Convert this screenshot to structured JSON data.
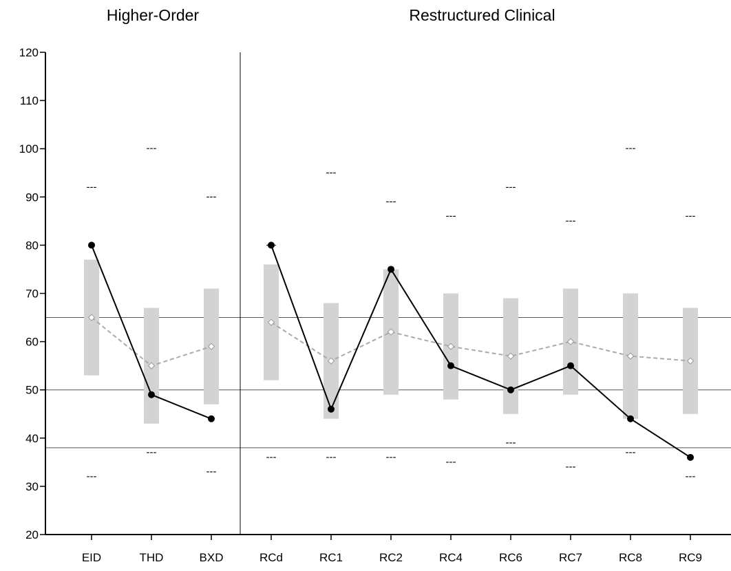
{
  "chart_data": {
    "type": "line",
    "groups": [
      {
        "label": "Higher-Order",
        "categories": [
          "EID",
          "THD",
          "BXD"
        ]
      },
      {
        "label": "Restructured Clinical",
        "categories": [
          "RCd",
          "RC1",
          "RC2",
          "RC4",
          "RC6",
          "RC7",
          "RC8",
          "RC9"
        ]
      }
    ],
    "categories": [
      "EID",
      "THD",
      "BXD",
      "RCd",
      "RC1",
      "RC2",
      "RC4",
      "RC6",
      "RC7",
      "RC8",
      "RC9"
    ],
    "ylim": [
      20,
      120
    ],
    "yticks": [
      20,
      30,
      40,
      50,
      60,
      70,
      80,
      90,
      100,
      110,
      120
    ],
    "reference_lines": [
      38,
      50,
      65
    ],
    "range_bars": [
      [
        53,
        77
      ],
      [
        43,
        67
      ],
      [
        47,
        71
      ],
      [
        52,
        76
      ],
      [
        44,
        68
      ],
      [
        49,
        75
      ],
      [
        48,
        70
      ],
      [
        45,
        69
      ],
      [
        49,
        71
      ],
      [
        44,
        70
      ],
      [
        45,
        67
      ]
    ],
    "series": [
      {
        "style": "solid",
        "values": [
          80,
          49,
          44,
          80,
          46,
          75,
          55,
          50,
          55,
          44,
          36
        ]
      },
      {
        "style": "dashed",
        "values": [
          65,
          55,
          59,
          64,
          56,
          62,
          59,
          57,
          60,
          57,
          56
        ]
      }
    ],
    "markers": {
      "upper": [
        92,
        100,
        90,
        80,
        95,
        89,
        86,
        92,
        85,
        100,
        86
      ],
      "lower": [
        32,
        37,
        33,
        36,
        36,
        36,
        35,
        39,
        34,
        37,
        32
      ],
      "marker_text": "---"
    },
    "colors": {
      "solid_line": "#000000",
      "dashed_line": "#aaaaaa",
      "range_bar": "#d3d3d3",
      "axis": "#000000"
    }
  }
}
